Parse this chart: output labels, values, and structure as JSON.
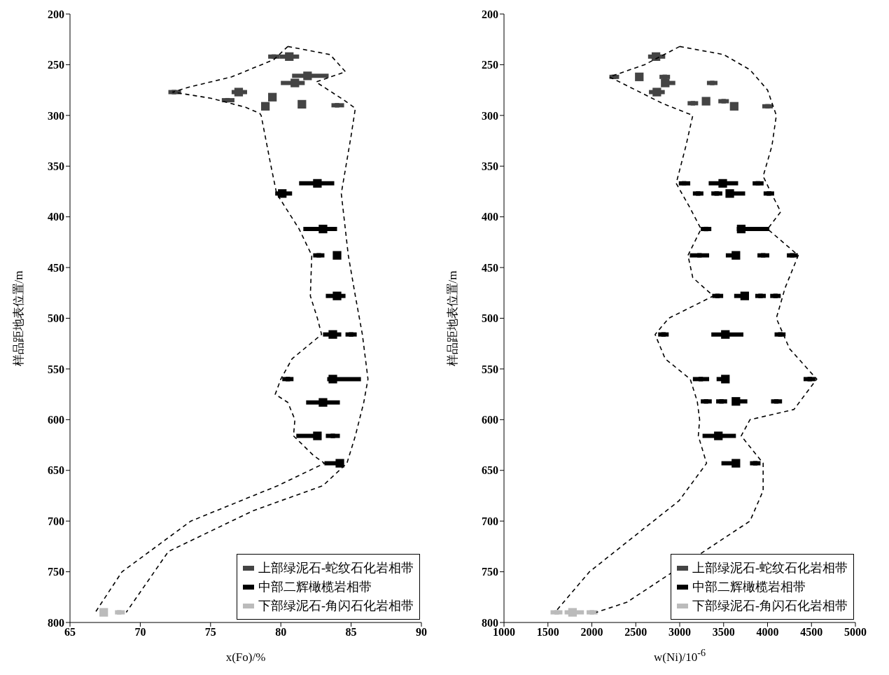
{
  "chart_data": [
    {
      "type": "scatter",
      "xlabel": "x(Fo)/%",
      "ylabel": "样品距地表位置/m",
      "xlim": [
        65,
        90
      ],
      "xticks": [
        65,
        70,
        75,
        80,
        85,
        90
      ],
      "ylim": [
        800,
        200
      ],
      "yticks": [
        200,
        250,
        300,
        350,
        400,
        450,
        500,
        550,
        600,
        650,
        700,
        750,
        800
      ],
      "marker": "square",
      "legend": "bottom right",
      "series": [
        {
          "name": "上部绿泥石-蛇纹石化岩相带",
          "color": "#444444",
          "x": [
            80.6,
            81.9,
            81.0,
            77.0,
            79.4,
            78.9,
            81.5
          ],
          "values": [
            242,
            261,
            268,
            277,
            282,
            291,
            289
          ],
          "xerrors": [
            [
              79.9,
              81.3
            ],
            [
              80.8,
              83.4
            ],
            [
              80.0,
              81.7
            ],
            [
              76.5,
              77.6
            ],
            null,
            null,
            null
          ]
        },
        {
          "color": "#444444",
          "marker": "square",
          "x": [
            79.5,
            72.4,
            76.2,
            84.0
          ],
          "values": [
            242,
            277,
            285,
            290
          ],
          "xerrors": [
            [
              79.1,
              79.9
            ],
            [
              72.0,
              72.9
            ],
            [
              75.8,
              76.7
            ],
            [
              83.6,
              84.5
            ]
          ]
        },
        {
          "name": "中部二辉橄榄岩相带",
          "color": "#000000",
          "x": [
            82.6,
            80.1,
            83.0,
            84.0,
            84.0,
            83.7,
            83.7,
            83.0,
            82.6,
            84.2
          ],
          "values": [
            367,
            377,
            412,
            438,
            478,
            516,
            560,
            583,
            616,
            643
          ],
          "xerrors": [
            [
              81.3,
              83.8
            ],
            [
              79.6,
              80.8
            ],
            [
              81.6,
              84.0
            ],
            null,
            [
              83.2,
              84.6
            ],
            [
              83.0,
              84.3
            ],
            [
              83.3,
              85.7
            ],
            [
              81.8,
              84.2
            ],
            [
              81.1,
              82.6
            ],
            [
              83.1,
              84.2
            ]
          ]
        },
        {
          "color": "#000000",
          "marker": "square",
          "x": [
            82.7,
            85.0,
            80.5,
            83.7
          ],
          "values": [
            438,
            516,
            560,
            616
          ],
          "xerrors": [
            [
              82.3,
              83.1
            ],
            [
              84.6,
              85.4
            ],
            [
              80.1,
              80.9
            ],
            [
              83.2,
              84.2
            ]
          ]
        },
        {
          "name": "下部绿泥石-角闪石化岩相带",
          "color": "#bbbbbb",
          "x": [
            67.4
          ],
          "values": [
            790
          ]
        },
        {
          "color": "#bbbbbb",
          "marker": "square",
          "x": [
            68.5
          ],
          "values": [
            790
          ],
          "xerrors": [
            [
              68.2,
              68.9
            ]
          ]
        },
        {
          "type": "line",
          "color": "#000000",
          "marker": "none",
          "line_style": "dashed",
          "x": [
            80.5,
            79.5,
            76.5,
            73.5,
            72.3,
            75,
            77.5,
            78.5,
            78.6,
            79.3,
            79.7,
            81.3,
            82.2,
            82.1,
            82.6,
            82.9,
            80.8,
            80.0,
            79.6,
            80.5,
            81.0,
            80.9,
            82.3,
            83.1,
            79.8,
            73.6,
            68.7,
            66.8
          ],
          "values": [
            232,
            245,
            262,
            272,
            277,
            283,
            292,
            298,
            300,
            350,
            377,
            412,
            438,
            478,
            500,
            516,
            540,
            560,
            575,
            583,
            600,
            616,
            635,
            643,
            665,
            700,
            750,
            790
          ]
        },
        {
          "type": "line",
          "color": "#000000",
          "marker": "none",
          "line_style": "dashed",
          "x": [
            80.5,
            83.5,
            84.6,
            82.5,
            84.5,
            85.3,
            85.0,
            84.3,
            84.8,
            85.3,
            85.8,
            86.2,
            85.9,
            85.3,
            84.7,
            83.0,
            78.0,
            72.0,
            69.0
          ],
          "values": [
            232,
            240,
            257,
            267,
            285,
            293,
            320,
            377,
            438,
            478,
            516,
            560,
            583,
            616,
            643,
            665,
            690,
            730,
            790
          ]
        }
      ]
    },
    {
      "type": "scatter",
      "xlabel": "w(Ni)/10$^{-6}$",
      "ylabel": "样品距地表位置/m",
      "xlim": [
        1000,
        5000
      ],
      "xticks": [
        1000,
        1500,
        2000,
        2500,
        3000,
        3500,
        4000,
        4500,
        5000
      ],
      "ylim": [
        800,
        200
      ],
      "yticks": [
        200,
        250,
        300,
        350,
        400,
        450,
        500,
        550,
        600,
        650,
        700,
        750,
        800
      ],
      "marker": "square",
      "legend": "bottom right",
      "series": [
        {
          "name": "上部绿泥石-蛇纹石化岩相带",
          "color": "#444444",
          "x": [
            2730,
            2540,
            2835,
            2740,
            3300,
            3620
          ],
          "values": [
            242,
            262,
            268,
            277,
            286,
            291
          ],
          "xerrors": [
            [
              2640,
              2835
            ],
            null,
            [
              2835,
              2950
            ],
            [
              2650,
              2830
            ],
            null,
            null
          ]
        },
        {
          "color": "#444444",
          "marker": "square",
          "x": [
            2250,
            2830,
            3370,
            3150,
            3500,
            4000
          ],
          "values": [
            262,
            262,
            268,
            288,
            286,
            291
          ],
          "xerrors": [
            [
              2200,
              2310
            ],
            [
              2770,
              2890
            ],
            [
              3310,
              3430
            ],
            [
              3090,
              3210
            ],
            [
              3440,
              3560
            ],
            [
              3940,
              4060
            ]
          ]
        },
        {
          "name": "中部二辉橄榄岩相带",
          "color": "#000000",
          "x": [
            3490,
            3570,
            3700,
            3640,
            3740,
            3520,
            3520,
            3640,
            3440,
            3640
          ],
          "values": [
            367,
            377,
            412,
            438,
            478,
            516,
            560,
            582,
            616,
            643
          ],
          "xerrors": [
            [
              3330,
              3665
            ],
            [
              3570,
              3745
            ],
            [
              3650,
              4020
            ],
            [
              3525,
              3640
            ],
            [
              3620,
              3740
            ],
            [
              3360,
              3725
            ],
            [
              3420,
              3520
            ],
            [
              3640,
              3770
            ],
            [
              3260,
              3640
            ],
            [
              3475,
              3640
            ]
          ]
        },
        {
          "color": "#000000",
          "marker": "square",
          "x": [
            3050,
            3890,
            3210,
            3420,
            4015,
            3300,
            3225,
            3950,
            4280,
            3430,
            3920,
            4090,
            2815,
            4145,
            3240,
            4480,
            3300,
            3475,
            4100,
            3860
          ],
          "values": [
            367,
            367,
            377,
            377,
            377,
            412,
            438,
            438,
            438,
            478,
            478,
            478,
            516,
            516,
            560,
            560,
            582,
            582,
            582,
            643
          ],
          "xerrors": [
            [
              2990,
              3120
            ],
            [
              3830,
              3955
            ],
            [
              3150,
              3270
            ],
            [
              3360,
              3485
            ],
            [
              3955,
              4075
            ],
            [
              3240,
              3360
            ],
            [
              3115,
              3335
            ],
            [
              3885,
              4020
            ],
            [
              4220,
              4345
            ],
            [
              3370,
              3495
            ],
            [
              3860,
              3980
            ],
            [
              4030,
              4150
            ],
            [
              2755,
              2875
            ],
            [
              4080,
              4205
            ],
            [
              3150,
              3335
            ],
            [
              4410,
              4545
            ],
            [
              3240,
              3365
            ],
            [
              3415,
              3540
            ],
            [
              4040,
              4165
            ],
            [
              3800,
              3920
            ]
          ]
        },
        {
          "name": "下部绿泥石-角闪石化岩相带",
          "color": "#bbbbbb",
          "x": [
            1780
          ],
          "values": [
            790
          ],
          "xerrors": [
            [
              1690,
              1910
            ]
          ]
        },
        {
          "color": "#bbbbbb",
          "marker": "square",
          "x": [
            1600,
            2000
          ],
          "values": [
            790,
            790
          ],
          "xerrors": [
            [
              1530,
              1665
            ],
            [
              1940,
              2065
            ]
          ]
        },
        {
          "type": "line",
          "color": "#000000",
          "marker": "none",
          "line_style": "dashed",
          "x": [
            3000,
            2600,
            2200,
            2500,
            2800,
            3149,
            3071,
            2960,
            3110,
            3243,
            3094,
            3149,
            3384,
            2875,
            2720,
            2835,
            3120,
            3200,
            3227,
            3212,
            3306,
            2992,
            1973,
            1580
          ],
          "values": [
            232,
            250,
            262,
            275,
            288,
            300,
            330,
            367,
            390,
            412,
            438,
            460,
            478,
            500,
            516,
            540,
            560,
            582,
            600,
            616,
            643,
            680,
            750,
            790
          ]
        },
        {
          "type": "line",
          "color": "#000000",
          "marker": "none",
          "line_style": "dashed",
          "x": [
            3000,
            3500,
            3800,
            4000,
            4100,
            4050,
            3950,
            4050,
            4150,
            4000,
            4350,
            4200,
            4100,
            4250,
            4560,
            4300,
            3800,
            3700,
            3950,
            3950,
            3800,
            2400,
            2050
          ],
          "values": [
            232,
            240,
            255,
            275,
            300,
            330,
            360,
            378,
            395,
            412,
            438,
            470,
            500,
            530,
            560,
            590,
            600,
            616,
            643,
            670,
            700,
            780,
            790
          ]
        }
      ]
    }
  ]
}
